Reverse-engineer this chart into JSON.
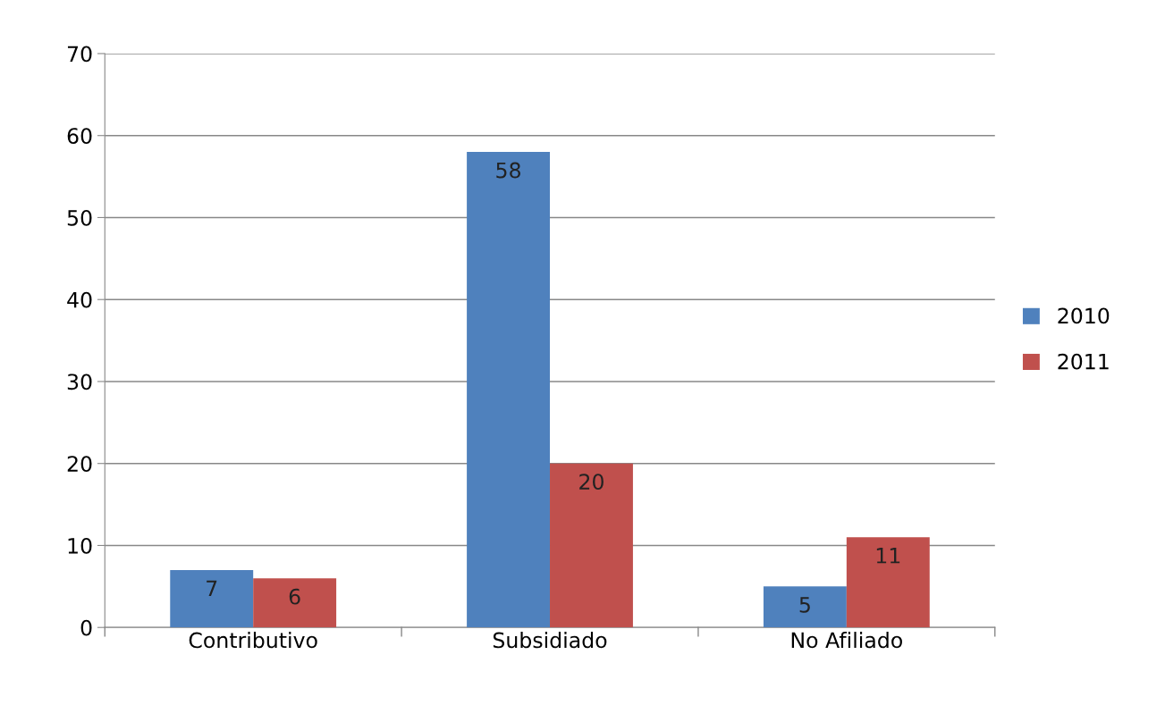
{
  "chart_data": {
    "type": "bar",
    "categories": [
      "Contributivo",
      "Subsidiado",
      "No Afiliado"
    ],
    "series": [
      {
        "name": "2010",
        "color": "#4f81bd",
        "values": [
          7,
          58,
          5
        ]
      },
      {
        "name": "2011",
        "color": "#c0504d",
        "values": [
          6,
          20,
          11
        ]
      }
    ],
    "ylim": [
      0,
      70
    ],
    "yticks": [
      0,
      10,
      20,
      30,
      40,
      50,
      60,
      70
    ],
    "grid": "y",
    "legend": "right",
    "data_labels": true
  }
}
